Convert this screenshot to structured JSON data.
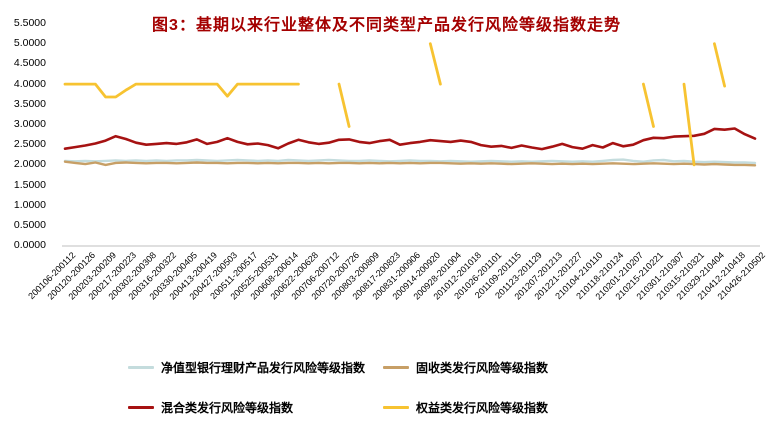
{
  "title": {
    "text": "图3：基期以来行业整体及不同类型产品发行风险等级指数走势",
    "color": "#A40000"
  },
  "chart_data": {
    "type": "line",
    "title": "图3：基期以来行业整体及不同类型产品发行风险等级指数走势",
    "xlabel": "",
    "ylabel": "",
    "ylim": [
      0.0,
      5.5
    ],
    "y_tick_step": 0.5,
    "grid": false,
    "legend_position": "bottom",
    "x_labels_every_n_points": 2,
    "y_tick_labels": [
      "0.0000",
      "0.5000",
      "1.0000",
      "1.5000",
      "2.0000",
      "2.5000",
      "3.0000",
      "3.5000",
      "4.0000",
      "4.5000",
      "5.0000",
      "5.5000"
    ],
    "x_tick_labels": [
      "200106-200112",
      "200120-200126",
      "200203-200209",
      "200217-200223",
      "200302-200308",
      "200316-200322",
      "200330-200405",
      "200413-200419",
      "200427-200503",
      "200511-200517",
      "200525-200531",
      "200608-200614",
      "200622-200628",
      "200706-200712",
      "200720-200726",
      "200803-200809",
      "200817-200823",
      "200831-200906",
      "200914-200920",
      "200928-201004",
      "201012-201018",
      "201026-201101",
      "201109-201115",
      "201123-201129",
      "201207-201213",
      "201221-201227",
      "210104-210110",
      "210118-210124",
      "210201-210207",
      "210215-210221",
      "210301-210307",
      "210315-210321",
      "210329-210404",
      "210412-210418",
      "210426-210502"
    ],
    "series": [
      {
        "name": "净值型银行理财产品发行风险等级指数",
        "color": "#C4DCDD",
        "width": 2.4,
        "values": [
          2.1,
          2.09,
          2.1,
          2.09,
          2.1,
          2.11,
          2.1,
          2.11,
          2.1,
          2.11,
          2.1,
          2.11,
          2.11,
          2.12,
          2.11,
          2.1,
          2.11,
          2.12,
          2.11,
          2.1,
          2.11,
          2.1,
          2.12,
          2.11,
          2.1,
          2.11,
          2.12,
          2.11,
          2.1,
          2.1,
          2.11,
          2.1,
          2.09,
          2.1,
          2.11,
          2.1,
          2.1,
          2.09,
          2.1,
          2.09,
          2.08,
          2.09,
          2.1,
          2.09,
          2.08,
          2.09,
          2.08,
          2.09,
          2.1,
          2.09,
          2.08,
          2.09,
          2.08,
          2.1,
          2.12,
          2.13,
          2.1,
          2.08,
          2.11,
          2.12,
          2.09,
          2.1,
          2.08,
          2.07,
          2.08,
          2.07,
          2.06,
          2.06,
          2.05
        ]
      },
      {
        "name": "固收类发行风险等级指数",
        "color": "#C79F66",
        "width": 2.4,
        "values": [
          2.08,
          2.05,
          2.02,
          2.06,
          2.0,
          2.05,
          2.06,
          2.05,
          2.04,
          2.05,
          2.05,
          2.04,
          2.05,
          2.06,
          2.05,
          2.05,
          2.04,
          2.05,
          2.05,
          2.04,
          2.05,
          2.04,
          2.05,
          2.05,
          2.04,
          2.05,
          2.04,
          2.05,
          2.05,
          2.04,
          2.05,
          2.04,
          2.05,
          2.04,
          2.05,
          2.04,
          2.05,
          2.05,
          2.04,
          2.03,
          2.04,
          2.03,
          2.04,
          2.03,
          2.02,
          2.03,
          2.04,
          2.03,
          2.02,
          2.03,
          2.02,
          2.03,
          2.02,
          2.03,
          2.04,
          2.03,
          2.02,
          2.03,
          2.04,
          2.03,
          2.02,
          2.03,
          2.02,
          2.01,
          2.02,
          2.01,
          2.0,
          2.0,
          1.99
        ]
      },
      {
        "name": "混合类发行风险等级指数",
        "color": "#A61212",
        "width": 2.6,
        "values": [
          2.4,
          2.44,
          2.48,
          2.53,
          2.6,
          2.71,
          2.64,
          2.55,
          2.5,
          2.52,
          2.54,
          2.52,
          2.56,
          2.63,
          2.52,
          2.57,
          2.66,
          2.57,
          2.51,
          2.53,
          2.49,
          2.41,
          2.53,
          2.62,
          2.56,
          2.52,
          2.55,
          2.62,
          2.63,
          2.57,
          2.54,
          2.59,
          2.62,
          2.5,
          2.54,
          2.57,
          2.61,
          2.59,
          2.57,
          2.6,
          2.57,
          2.49,
          2.45,
          2.47,
          2.42,
          2.48,
          2.43,
          2.39,
          2.45,
          2.52,
          2.44,
          2.4,
          2.49,
          2.43,
          2.54,
          2.46,
          2.5,
          2.61,
          2.67,
          2.66,
          2.7,
          2.71,
          2.72,
          2.77,
          2.89,
          2.87,
          2.9,
          2.76,
          2.65
        ]
      },
      {
        "name": "权益类发行风险等级指数",
        "color": "#F7C331",
        "width": 2.8,
        "values": [
          4.0,
          4.0,
          4.0,
          4.0,
          3.68,
          3.68,
          3.85,
          4.0,
          4.0,
          4.0,
          4.0,
          4.0,
          4.0,
          4.0,
          4.0,
          4.0,
          3.7,
          4.0,
          4.0,
          4.0,
          4.0,
          4.0,
          4.0,
          4.0,
          null,
          null,
          null,
          4.0,
          2.95,
          null,
          null,
          null,
          null,
          null,
          null,
          null,
          5.0,
          4.0,
          null,
          null,
          null,
          null,
          null,
          null,
          null,
          null,
          null,
          null,
          null,
          null,
          null,
          null,
          null,
          null,
          null,
          null,
          null,
          4.0,
          2.95,
          null,
          null,
          4.0,
          2.0,
          null,
          5.0,
          3.95,
          null,
          null,
          null
        ]
      }
    ]
  },
  "axis": {
    "line_color": "#BFBFBF"
  }
}
